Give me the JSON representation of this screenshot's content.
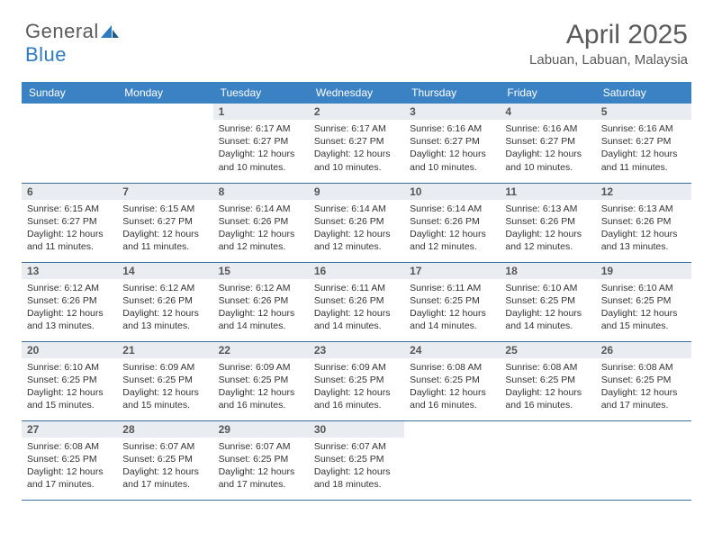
{
  "brand": {
    "name_a": "General",
    "name_b": "Blue"
  },
  "title": "April 2025",
  "subtitle": "Labuan, Labuan, Malaysia",
  "colors": {
    "header_bg": "#3b82c4",
    "header_text": "#ffffff",
    "daynum_bg": "#e9edf1",
    "rule": "#3b6fa0",
    "text": "#333333",
    "brand_gray": "#5a5a5a",
    "brand_blue": "#2f7bbf"
  },
  "calendar": {
    "type": "table",
    "columns": [
      "Sunday",
      "Monday",
      "Tuesday",
      "Wednesday",
      "Thursday",
      "Friday",
      "Saturday"
    ],
    "column_width_pct": 14.28,
    "fontsize_header": 12,
    "fontsize_daynum": 12,
    "fontsize_body": 10.5,
    "weeks": [
      [
        null,
        null,
        {
          "d": "1",
          "sr": "6:17 AM",
          "ss": "6:27 PM",
          "dl": "12 hours and 10 minutes."
        },
        {
          "d": "2",
          "sr": "6:17 AM",
          "ss": "6:27 PM",
          "dl": "12 hours and 10 minutes."
        },
        {
          "d": "3",
          "sr": "6:16 AM",
          "ss": "6:27 PM",
          "dl": "12 hours and 10 minutes."
        },
        {
          "d": "4",
          "sr": "6:16 AM",
          "ss": "6:27 PM",
          "dl": "12 hours and 10 minutes."
        },
        {
          "d": "5",
          "sr": "6:16 AM",
          "ss": "6:27 PM",
          "dl": "12 hours and 11 minutes."
        }
      ],
      [
        {
          "d": "6",
          "sr": "6:15 AM",
          "ss": "6:27 PM",
          "dl": "12 hours and 11 minutes."
        },
        {
          "d": "7",
          "sr": "6:15 AM",
          "ss": "6:27 PM",
          "dl": "12 hours and 11 minutes."
        },
        {
          "d": "8",
          "sr": "6:14 AM",
          "ss": "6:26 PM",
          "dl": "12 hours and 12 minutes."
        },
        {
          "d": "9",
          "sr": "6:14 AM",
          "ss": "6:26 PM",
          "dl": "12 hours and 12 minutes."
        },
        {
          "d": "10",
          "sr": "6:14 AM",
          "ss": "6:26 PM",
          "dl": "12 hours and 12 minutes."
        },
        {
          "d": "11",
          "sr": "6:13 AM",
          "ss": "6:26 PM",
          "dl": "12 hours and 12 minutes."
        },
        {
          "d": "12",
          "sr": "6:13 AM",
          "ss": "6:26 PM",
          "dl": "12 hours and 13 minutes."
        }
      ],
      [
        {
          "d": "13",
          "sr": "6:12 AM",
          "ss": "6:26 PM",
          "dl": "12 hours and 13 minutes."
        },
        {
          "d": "14",
          "sr": "6:12 AM",
          "ss": "6:26 PM",
          "dl": "12 hours and 13 minutes."
        },
        {
          "d": "15",
          "sr": "6:12 AM",
          "ss": "6:26 PM",
          "dl": "12 hours and 14 minutes."
        },
        {
          "d": "16",
          "sr": "6:11 AM",
          "ss": "6:26 PM",
          "dl": "12 hours and 14 minutes."
        },
        {
          "d": "17",
          "sr": "6:11 AM",
          "ss": "6:25 PM",
          "dl": "12 hours and 14 minutes."
        },
        {
          "d": "18",
          "sr": "6:10 AM",
          "ss": "6:25 PM",
          "dl": "12 hours and 14 minutes."
        },
        {
          "d": "19",
          "sr": "6:10 AM",
          "ss": "6:25 PM",
          "dl": "12 hours and 15 minutes."
        }
      ],
      [
        {
          "d": "20",
          "sr": "6:10 AM",
          "ss": "6:25 PM",
          "dl": "12 hours and 15 minutes."
        },
        {
          "d": "21",
          "sr": "6:09 AM",
          "ss": "6:25 PM",
          "dl": "12 hours and 15 minutes."
        },
        {
          "d": "22",
          "sr": "6:09 AM",
          "ss": "6:25 PM",
          "dl": "12 hours and 16 minutes."
        },
        {
          "d": "23",
          "sr": "6:09 AM",
          "ss": "6:25 PM",
          "dl": "12 hours and 16 minutes."
        },
        {
          "d": "24",
          "sr": "6:08 AM",
          "ss": "6:25 PM",
          "dl": "12 hours and 16 minutes."
        },
        {
          "d": "25",
          "sr": "6:08 AM",
          "ss": "6:25 PM",
          "dl": "12 hours and 16 minutes."
        },
        {
          "d": "26",
          "sr": "6:08 AM",
          "ss": "6:25 PM",
          "dl": "12 hours and 17 minutes."
        }
      ],
      [
        {
          "d": "27",
          "sr": "6:08 AM",
          "ss": "6:25 PM",
          "dl": "12 hours and 17 minutes."
        },
        {
          "d": "28",
          "sr": "6:07 AM",
          "ss": "6:25 PM",
          "dl": "12 hours and 17 minutes."
        },
        {
          "d": "29",
          "sr": "6:07 AM",
          "ss": "6:25 PM",
          "dl": "12 hours and 17 minutes."
        },
        {
          "d": "30",
          "sr": "6:07 AM",
          "ss": "6:25 PM",
          "dl": "12 hours and 18 minutes."
        },
        null,
        null,
        null
      ]
    ]
  },
  "labels": {
    "sunrise": "Sunrise:",
    "sunset": "Sunset:",
    "daylight": "Daylight:"
  }
}
